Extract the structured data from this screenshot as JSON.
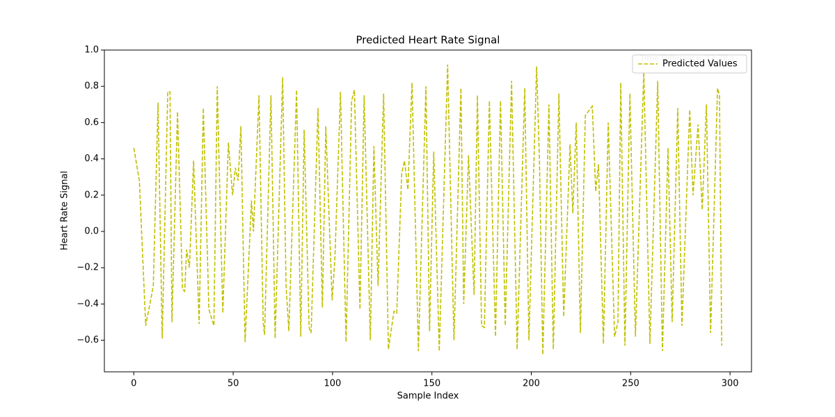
{
  "chart_data": {
    "type": "line",
    "title": "Predicted Heart Rate Signal",
    "xlabel": "Sample Index",
    "ylabel": "Heart Rate Signal",
    "annotation": "Time Difference: 12.38 s",
    "legend": "upper right",
    "grid": false,
    "xlim": [
      -14.8,
      310.8
    ],
    "ylim": [
      -0.774,
      1.0
    ],
    "xticks": [
      0,
      50,
      100,
      150,
      200,
      250,
      300
    ],
    "yticks": [
      {
        "value": -0.6,
        "label": "−0.6"
      },
      {
        "value": -0.4,
        "label": "−0.4"
      },
      {
        "value": -0.2,
        "label": "−0.2"
      },
      {
        "value": 0,
        "label": "0.0"
      },
      0.2,
      0.4,
      0.6,
      0.8,
      {
        "value": 1,
        "label": "1.0"
      }
    ],
    "x": [
      0,
      2.8,
      6.0,
      9.8,
      12.2,
      14.3,
      17.1,
      18.2,
      19.2,
      22.0,
      24.5,
      25.6,
      26.6,
      28.0,
      30.1,
      32.9,
      35.0,
      37.8,
      40.3,
      42.0,
      44.8,
      47.6,
      49.7,
      51.1,
      52.5,
      53.9,
      56.0,
      59.2,
      60.2,
      63.0,
      65.1,
      65.8,
      69.0,
      71.1,
      74.9,
      76.6,
      78.0,
      81.9,
      84.0,
      85.7,
      88.2,
      89.2,
      92.7,
      94.9,
      96.6,
      99.8,
      101.2,
      104.0,
      106.8,
      109.6,
      111.0,
      113.8,
      115.9,
      119.0,
      120.8,
      122.9,
      125.7,
      128.1,
      130.9,
      132.3,
      134.8,
      136.2,
      137.9,
      140.0,
      143.2,
      147.0,
      148.8,
      150.9,
      153.7,
      157.9,
      161.1,
      164.6,
      166.0,
      168.4,
      171.2,
      172.9,
      175.0,
      176.4,
      178.9,
      182.0,
      184.5,
      186.9,
      190.1,
      192.9,
      196.7,
      198.8,
      202.7,
      204.1,
      205.8,
      208.9,
      211.1,
      213.9,
      216.3,
      219.5,
      220.9,
      222.6,
      224.7,
      227.2,
      230.7,
      232.4,
      233.8,
      236.3,
      238.7,
      241.9,
      243.6,
      245.0,
      247.1,
      249.6,
      252.4,
      256.6,
      259.7,
      263.6,
      266.0,
      268.8,
      270.9,
      273.7,
      275.8,
      279.7,
      281.4,
      283.9,
      286.0,
      288.1,
      290.2,
      293.7,
      294.7,
      295.8
    ],
    "series": [
      {
        "name": "Predicted Values",
        "color": "#bfbf00",
        "values": [
          0.46,
          0.28,
          -0.52,
          -0.3,
          0.71,
          -0.59,
          0.77,
          0.77,
          -0.5,
          0.66,
          -0.32,
          -0.33,
          -0.1,
          -0.2,
          0.39,
          -0.51,
          0.68,
          -0.43,
          -0.52,
          0.8,
          -0.45,
          0.49,
          0.2,
          0.35,
          0.28,
          0.58,
          -0.61,
          0.17,
          0.0,
          0.75,
          -0.5,
          -0.57,
          0.75,
          -0.59,
          0.85,
          -0.3,
          -0.55,
          0.78,
          -0.58,
          0.56,
          -0.53,
          -0.56,
          0.68,
          -0.42,
          0.58,
          -0.38,
          -0.15,
          0.77,
          -0.61,
          0.72,
          0.78,
          -0.43,
          0.75,
          -0.6,
          0.47,
          -0.3,
          0.76,
          -0.65,
          -0.44,
          -0.45,
          0.32,
          0.39,
          0.23,
          0.82,
          -0.66,
          0.8,
          -0.55,
          0.44,
          -0.66,
          0.92,
          -0.6,
          0.79,
          -0.4,
          0.42,
          -0.35,
          0.75,
          -0.52,
          -0.53,
          0.72,
          -0.58,
          0.72,
          -0.52,
          0.83,
          -0.65,
          0.79,
          -0.6,
          0.91,
          0.4,
          -0.68,
          0.7,
          -0.65,
          0.76,
          -0.47,
          0.48,
          0.1,
          0.6,
          -0.56,
          0.64,
          0.69,
          0.22,
          0.37,
          -0.62,
          0.6,
          -0.58,
          -0.5,
          0.82,
          -0.63,
          0.76,
          -0.58,
          0.88,
          -0.62,
          0.83,
          -0.66,
          0.46,
          -0.5,
          0.68,
          -0.52,
          0.67,
          0.2,
          0.59,
          0.12,
          0.7,
          -0.56,
          0.79,
          0.75,
          -0.63
        ]
      }
    ]
  }
}
